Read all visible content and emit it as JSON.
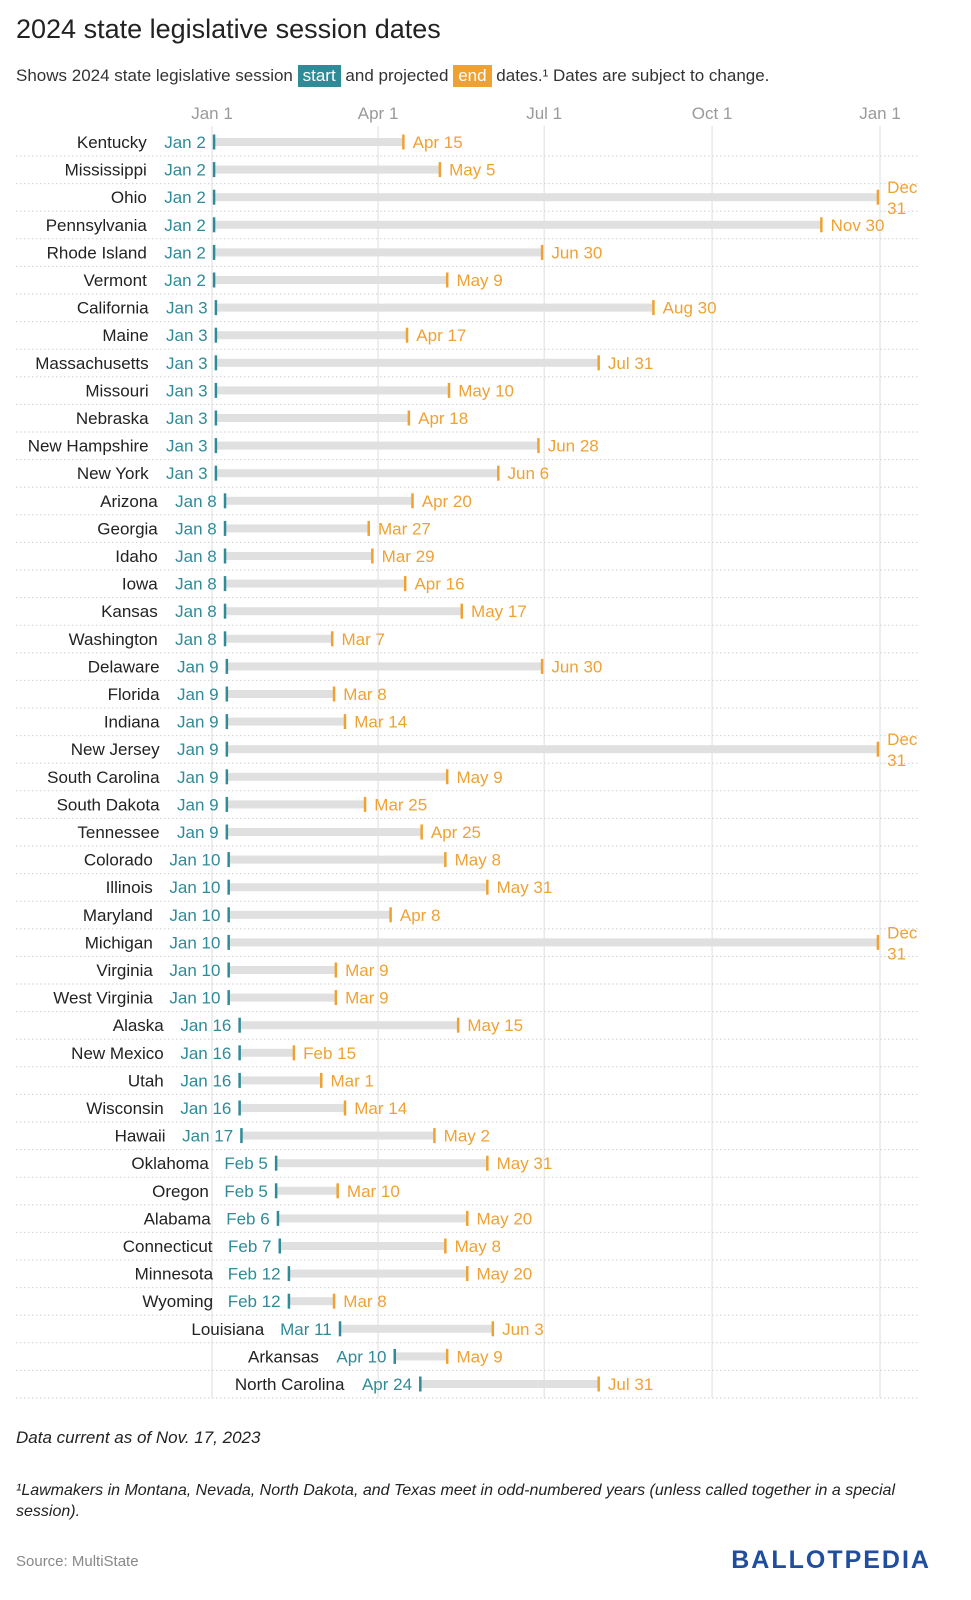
{
  "title": "2024 state legislative session dates",
  "subtitle": {
    "pre": "Shows 2024 state legislative session",
    "start_label": "start",
    "mid": "and projected",
    "end_label": "end",
    "post": "dates.¹ Dates are subject to change."
  },
  "note": "Data current as of Nov. 17, 2023",
  "footnote": "¹Lawmakers in Montana, Nevada, North Dakota, and Texas meet in odd-numbered years (unless called together in a special session).",
  "source": "Source: MultiState",
  "logo": "BALLOTPEDIA",
  "colors": {
    "start": "#2f8b98",
    "end": "#efa233",
    "bar": "#e0e0e0"
  },
  "chart_data": {
    "type": "range-bar",
    "x_ticks": [
      "Jan 1",
      "Apr 1",
      "Jul 1",
      "Oct 1",
      "Jan 1"
    ],
    "x_tick_days": [
      0,
      91,
      182,
      274,
      366
    ],
    "grid": true,
    "rows": [
      {
        "state": "Kentucky",
        "start": "Jan 2",
        "end": "Apr 15",
        "s": 1,
        "e": 105
      },
      {
        "state": "Mississippi",
        "start": "Jan 2",
        "end": "May 5",
        "s": 1,
        "e": 125
      },
      {
        "state": "Ohio",
        "start": "Jan 2",
        "end": "Dec 31",
        "s": 1,
        "e": 365
      },
      {
        "state": "Pennsylvania",
        "start": "Jan 2",
        "end": "Nov 30",
        "s": 1,
        "e": 334
      },
      {
        "state": "Rhode Island",
        "start": "Jan 2",
        "end": "Jun 30",
        "s": 1,
        "e": 181
      },
      {
        "state": "Vermont",
        "start": "Jan 2",
        "end": "May 9",
        "s": 1,
        "e": 129
      },
      {
        "state": "California",
        "start": "Jan 3",
        "end": "Aug 30",
        "s": 2,
        "e": 242
      },
      {
        "state": "Maine",
        "start": "Jan 3",
        "end": "Apr 17",
        "s": 2,
        "e": 107
      },
      {
        "state": "Massachusetts",
        "start": "Jan 3",
        "end": "Jul 31",
        "s": 2,
        "e": 212
      },
      {
        "state": "Missouri",
        "start": "Jan 3",
        "end": "May 10",
        "s": 2,
        "e": 130
      },
      {
        "state": "Nebraska",
        "start": "Jan 3",
        "end": "Apr 18",
        "s": 2,
        "e": 108
      },
      {
        "state": "New Hampshire",
        "start": "Jan 3",
        "end": "Jun 28",
        "s": 2,
        "e": 179
      },
      {
        "state": "New York",
        "start": "Jan 3",
        "end": "Jun 6",
        "s": 2,
        "e": 157
      },
      {
        "state": "Arizona",
        "start": "Jan 8",
        "end": "Apr 20",
        "s": 7,
        "e": 110
      },
      {
        "state": "Georgia",
        "start": "Jan 8",
        "end": "Mar 27",
        "s": 7,
        "e": 86
      },
      {
        "state": "Idaho",
        "start": "Jan 8",
        "end": "Mar 29",
        "s": 7,
        "e": 88
      },
      {
        "state": "Iowa",
        "start": "Jan 8",
        "end": "Apr 16",
        "s": 7,
        "e": 106
      },
      {
        "state": "Kansas",
        "start": "Jan 8",
        "end": "May 17",
        "s": 7,
        "e": 137
      },
      {
        "state": "Washington",
        "start": "Jan 8",
        "end": "Mar 7",
        "s": 7,
        "e": 66
      },
      {
        "state": "Delaware",
        "start": "Jan 9",
        "end": "Jun 30",
        "s": 8,
        "e": 181
      },
      {
        "state": "Florida",
        "start": "Jan 9",
        "end": "Mar 8",
        "s": 8,
        "e": 67
      },
      {
        "state": "Indiana",
        "start": "Jan 9",
        "end": "Mar 14",
        "s": 8,
        "e": 73
      },
      {
        "state": "New Jersey",
        "start": "Jan 9",
        "end": "Dec 31",
        "s": 8,
        "e": 365
      },
      {
        "state": "South Carolina",
        "start": "Jan 9",
        "end": "May 9",
        "s": 8,
        "e": 129
      },
      {
        "state": "South Dakota",
        "start": "Jan 9",
        "end": "Mar 25",
        "s": 8,
        "e": 84
      },
      {
        "state": "Tennessee",
        "start": "Jan 9",
        "end": "Apr 25",
        "s": 8,
        "e": 115
      },
      {
        "state": "Colorado",
        "start": "Jan 10",
        "end": "May 8",
        "s": 9,
        "e": 128
      },
      {
        "state": "Illinois",
        "start": "Jan 10",
        "end": "May 31",
        "s": 9,
        "e": 151
      },
      {
        "state": "Maryland",
        "start": "Jan 10",
        "end": "Apr 8",
        "s": 9,
        "e": 98
      },
      {
        "state": "Michigan",
        "start": "Jan 10",
        "end": "Dec 31",
        "s": 9,
        "e": 365
      },
      {
        "state": "Virginia",
        "start": "Jan 10",
        "end": "Mar 9",
        "s": 9,
        "e": 68
      },
      {
        "state": "West Virginia",
        "start": "Jan 10",
        "end": "Mar 9",
        "s": 9,
        "e": 68
      },
      {
        "state": "Alaska",
        "start": "Jan 16",
        "end": "May 15",
        "s": 15,
        "e": 135
      },
      {
        "state": "New Mexico",
        "start": "Jan 16",
        "end": "Feb 15",
        "s": 15,
        "e": 45
      },
      {
        "state": "Utah",
        "start": "Jan 16",
        "end": "Mar 1",
        "s": 15,
        "e": 60
      },
      {
        "state": "Wisconsin",
        "start": "Jan 16",
        "end": "Mar 14",
        "s": 15,
        "e": 73
      },
      {
        "state": "Hawaii",
        "start": "Jan 17",
        "end": "May 2",
        "s": 16,
        "e": 122
      },
      {
        "state": "Oklahoma",
        "start": "Feb 5",
        "end": "May 31",
        "s": 35,
        "e": 151
      },
      {
        "state": "Oregon",
        "start": "Feb 5",
        "end": "Mar 10",
        "s": 35,
        "e": 69
      },
      {
        "state": "Alabama",
        "start": "Feb 6",
        "end": "May 20",
        "s": 36,
        "e": 140
      },
      {
        "state": "Connecticut",
        "start": "Feb 7",
        "end": "May 8",
        "s": 37,
        "e": 128
      },
      {
        "state": "Minnesota",
        "start": "Feb 12",
        "end": "May 20",
        "s": 42,
        "e": 140
      },
      {
        "state": "Wyoming",
        "start": "Feb 12",
        "end": "Mar 8",
        "s": 42,
        "e": 67
      },
      {
        "state": "Louisiana",
        "start": "Mar 11",
        "end": "Jun 3",
        "s": 70,
        "e": 154
      },
      {
        "state": "Arkansas",
        "start": "Apr 10",
        "end": "May 9",
        "s": 100,
        "e": 129
      },
      {
        "state": "North Carolina",
        "start": "Apr 24",
        "end": "Jul 31",
        "s": 114,
        "e": 212
      }
    ]
  }
}
